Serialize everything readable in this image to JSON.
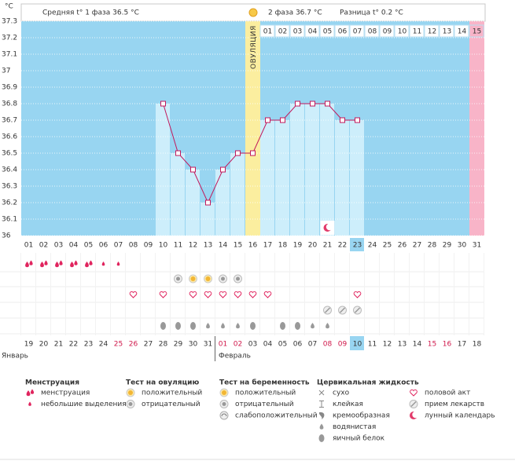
{
  "header": {
    "unit": "°C",
    "phase1": "Средняя t° 1 фаза 36.5 °C",
    "phase2": "2 фаза 36.7 °C",
    "difference": "Разница t° 0.2 °C"
  },
  "chart_data": {
    "type": "line",
    "categories": [
      "01",
      "02",
      "03",
      "04",
      "05",
      "06",
      "07",
      "08",
      "09",
      "10",
      "11",
      "12",
      "13",
      "14",
      "15",
      "16",
      "17",
      "18",
      "19",
      "20",
      "21",
      "22",
      "23",
      "24",
      "25",
      "26",
      "27",
      "28",
      "29",
      "30",
      "31"
    ],
    "values": [
      null,
      null,
      null,
      null,
      null,
      null,
      null,
      null,
      null,
      36.8,
      36.5,
      36.4,
      36.2,
      36.4,
      36.5,
      36.5,
      36.7,
      36.7,
      36.8,
      36.8,
      36.8,
      36.7,
      36.7,
      null,
      null,
      null,
      null,
      null,
      null,
      null,
      null
    ],
    "color": "#c2185b",
    "ylim": [
      36,
      37.3
    ],
    "yticks": [
      37.3,
      37.2,
      37.1,
      37,
      36.9,
      36.8,
      36.7,
      36.6,
      36.5,
      36.4,
      36.3,
      36.2,
      36.1,
      36
    ],
    "grid": true,
    "ovulation_label": "ОВУЛЯЦИЯ",
    "phase2_days": [
      "01",
      "02",
      "03",
      "04",
      "05",
      "06",
      "07",
      "08",
      "09",
      "10",
      "11",
      "12",
      "13",
      "14",
      "15"
    ]
  },
  "dates": [
    "19",
    "20",
    "21",
    "22",
    "23",
    "24",
    "25",
    "26",
    "27",
    "28",
    "29",
    "30",
    "31",
    "01",
    "02",
    "03",
    "04",
    "05",
    "06",
    "07",
    "08",
    "09",
    "10",
    "11",
    "12",
    "13",
    "14",
    "15",
    "16",
    "17",
    "18"
  ],
  "months": [
    "Январь",
    "Февраль"
  ],
  "legend": [
    {
      "title": "Менструация",
      "items": [
        "менструация",
        "небольшие выделения"
      ]
    },
    {
      "title": "Тест на овуляцию",
      "items": [
        "положительный",
        "отрицательный"
      ]
    },
    {
      "title": "Тест на беременность",
      "items": [
        "положительный",
        "отрицательный",
        "слабоположительный"
      ]
    },
    {
      "title": "Цервикальная жидкость",
      "items": [
        "сухо",
        "клейкая",
        "кремообразная",
        "водянистая",
        "яичный белок"
      ]
    },
    {
      "items": [
        "половой акт",
        "прием лекарств",
        "лунный календарь"
      ]
    }
  ]
}
